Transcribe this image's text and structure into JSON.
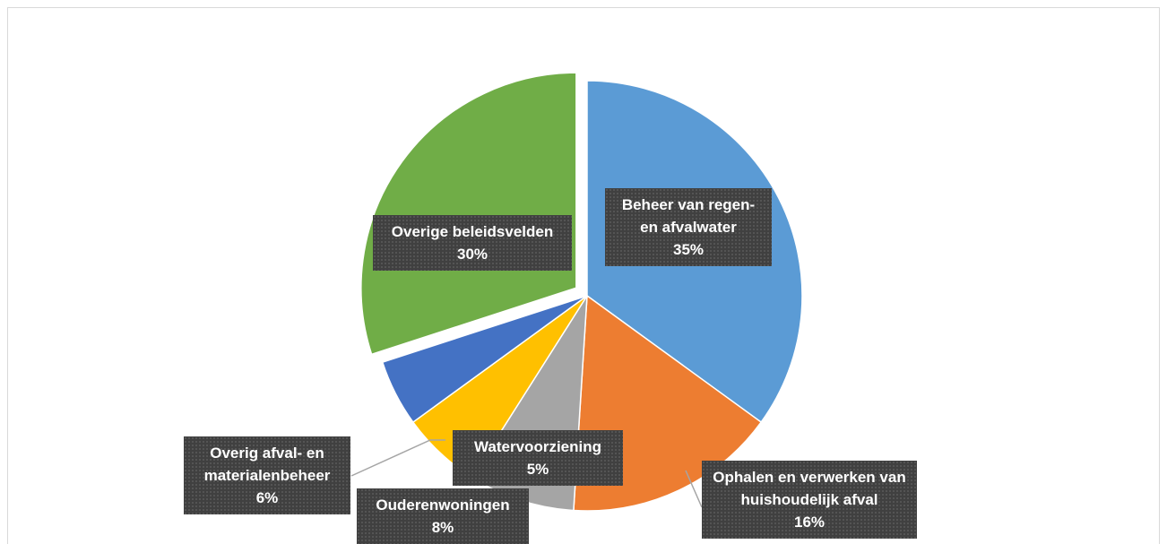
{
  "chart_data": {
    "type": "pie",
    "categories": [
      "Beheer van regen- en afvalwater",
      "Ophalen en verwerken van huishoudelijk afval",
      "Ouderenwoningen",
      "Overig afval- en materialenbeheer",
      "Watervoorziening",
      "Overige beleidsvelden"
    ],
    "values": [
      35,
      16,
      8,
      6,
      5,
      30
    ],
    "value_labels": [
      "35%",
      "16%",
      "8%",
      "6%",
      "5%",
      "30%"
    ],
    "colors": [
      "#5b9bd5",
      "#ed7d31",
      "#a5a5a5",
      "#ffc000",
      "#4472c4",
      "#70ad47"
    ]
  }
}
